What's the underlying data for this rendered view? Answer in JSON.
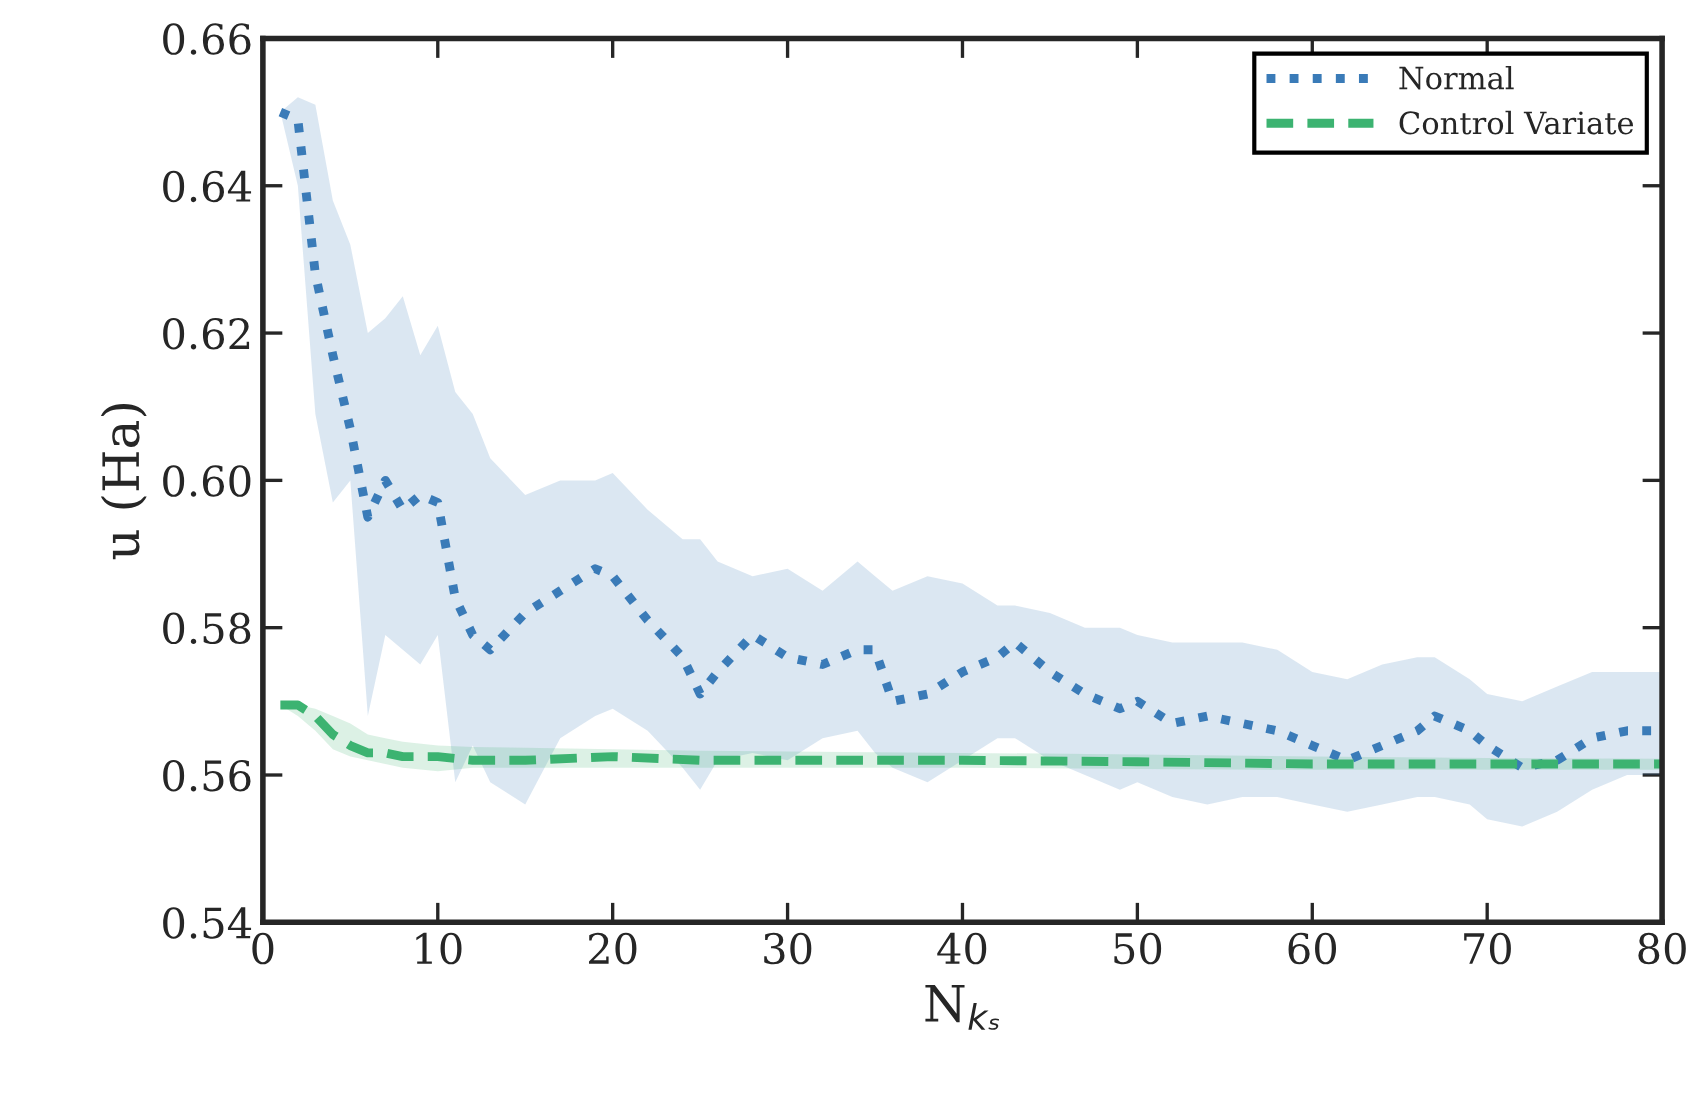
{
  "chart_data": {
    "type": "line",
    "xlabel": "N$_{kₛ}$",
    "ylabel": "u (Ha)",
    "xlim": [
      0,
      80
    ],
    "xticks": [
      0,
      10,
      20,
      30,
      40,
      50,
      60,
      70,
      80
    ],
    "ylim": [
      0.54,
      0.66
    ],
    "yticks": [
      {
        "value": 0.54,
        "label": "0.54"
      },
      {
        "value": 0.56,
        "label": "0.56"
      },
      {
        "value": 0.58,
        "label": "0.58"
      },
      {
        "value": 0.6,
        "label": "0.60"
      },
      {
        "value": 0.62,
        "label": "0.62"
      },
      {
        "value": 0.64,
        "label": "0.64"
      },
      {
        "value": 0.66,
        "label": "0.66"
      }
    ],
    "grid": false,
    "legend": "top right",
    "marker": "none",
    "series": [
      {
        "name": "Normal",
        "color": "#3a7bb8",
        "line_style": "dotted",
        "x": [
          1,
          2,
          3,
          4,
          5,
          6,
          7,
          8,
          9,
          10,
          11,
          12,
          13,
          15,
          17,
          19,
          20,
          22,
          24,
          25,
          26,
          28,
          30,
          32,
          34,
          35,
          36,
          38,
          40,
          42,
          43,
          45,
          47,
          49,
          50,
          52,
          54,
          56,
          58,
          60,
          62,
          64,
          66,
          67,
          69,
          70,
          72,
          74,
          76,
          78,
          80
        ],
        "values": [
          0.65,
          0.649,
          0.628,
          0.617,
          0.607,
          0.595,
          0.6,
          0.596,
          0.598,
          0.597,
          0.584,
          0.579,
          0.577,
          0.582,
          0.585,
          0.588,
          0.587,
          0.581,
          0.576,
          0.571,
          0.574,
          0.579,
          0.576,
          0.575,
          0.577,
          0.577,
          0.57,
          0.571,
          0.574,
          0.576,
          0.578,
          0.574,
          0.571,
          0.569,
          0.57,
          0.567,
          0.568,
          0.567,
          0.566,
          0.564,
          0.562,
          0.564,
          0.566,
          0.568,
          0.566,
          0.564,
          0.561,
          0.562,
          0.565,
          0.566,
          0.566
        ],
        "upper": [
          0.65,
          0.652,
          0.651,
          0.638,
          0.632,
          0.62,
          0.622,
          0.625,
          0.617,
          0.621,
          0.612,
          0.609,
          0.603,
          0.598,
          0.6,
          0.6,
          0.601,
          0.596,
          0.592,
          0.592,
          0.589,
          0.587,
          0.588,
          0.585,
          0.589,
          0.587,
          0.585,
          0.587,
          0.586,
          0.583,
          0.583,
          0.582,
          0.58,
          0.58,
          0.579,
          0.578,
          0.578,
          0.578,
          0.577,
          0.574,
          0.573,
          0.575,
          0.576,
          0.576,
          0.573,
          0.571,
          0.57,
          0.572,
          0.574,
          0.574,
          0.574
        ],
        "lower": [
          0.65,
          0.64,
          0.609,
          0.597,
          0.6,
          0.568,
          0.579,
          0.577,
          0.575,
          0.579,
          0.559,
          0.564,
          0.559,
          0.556,
          0.565,
          0.568,
          0.569,
          0.566,
          0.561,
          0.558,
          0.562,
          0.563,
          0.562,
          0.565,
          0.566,
          0.563,
          0.561,
          0.559,
          0.562,
          0.565,
          0.565,
          0.562,
          0.56,
          0.558,
          0.559,
          0.557,
          0.556,
          0.557,
          0.557,
          0.556,
          0.555,
          0.556,
          0.557,
          0.557,
          0.556,
          0.554,
          0.553,
          0.555,
          0.558,
          0.56,
          0.56
        ]
      },
      {
        "name": "Control Variate",
        "color": "#3cb371",
        "line_style": "dashed",
        "x": [
          1,
          2,
          3,
          4,
          5,
          6,
          7,
          8,
          10,
          12,
          15,
          20,
          25,
          30,
          40,
          50,
          60,
          70,
          80
        ],
        "values": [
          0.5695,
          0.5695,
          0.568,
          0.5655,
          0.564,
          0.563,
          0.563,
          0.5625,
          0.5625,
          0.562,
          0.562,
          0.5625,
          0.562,
          0.562,
          0.562,
          0.5618,
          0.5615,
          0.5615,
          0.5615
        ],
        "upper": [
          0.5695,
          0.5695,
          0.569,
          0.568,
          0.567,
          0.5655,
          0.565,
          0.5645,
          0.564,
          0.5638,
          0.5637,
          0.5635,
          0.5633,
          0.5632,
          0.563,
          0.5628,
          0.5625,
          0.5623,
          0.5622
        ],
        "lower": [
          0.5695,
          0.568,
          0.566,
          0.5635,
          0.5625,
          0.562,
          0.5615,
          0.561,
          0.5605,
          0.561,
          0.561,
          0.561,
          0.561,
          0.561,
          0.561,
          0.5608,
          0.5607,
          0.5607,
          0.5607
        ]
      }
    ]
  }
}
